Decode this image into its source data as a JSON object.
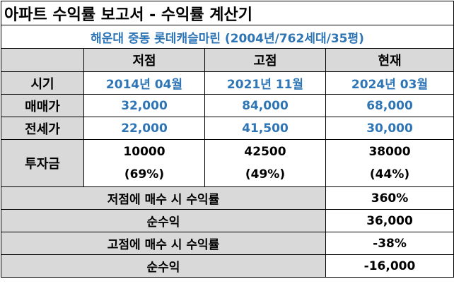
{
  "title": "아파트 수익률 보고서 - 수익률 계산기",
  "subtitle": "해운대 중동 롯데캐슬마린 (2004년/762세대/35평)",
  "columns": [
    "저점",
    "고점",
    "현재"
  ],
  "rows": {
    "period": {
      "label": "시기",
      "values": [
        "2014년 04월",
        "2021년 11월",
        "2024년 03월"
      ]
    },
    "sale_price": {
      "label": "매매가",
      "values": [
        "32,000",
        "84,000",
        "68,000"
      ]
    },
    "jeonse_price": {
      "label": "전세가",
      "values": [
        "22,000",
        "41,500",
        "30,000"
      ]
    },
    "investment": {
      "label": "투자금",
      "amounts": [
        "10000",
        "42500",
        "38000"
      ],
      "ratios": [
        "(69%)",
        "(49%)",
        "(44%)"
      ]
    }
  },
  "summary": [
    {
      "label": "저점에 매수 시 수익률",
      "value": "360%"
    },
    {
      "label": "순수익",
      "value": "36,000"
    },
    {
      "label": "고점에 매수 시 수익률",
      "value": "-38%"
    },
    {
      "label": "순수익",
      "value": "-16,000"
    }
  ]
}
